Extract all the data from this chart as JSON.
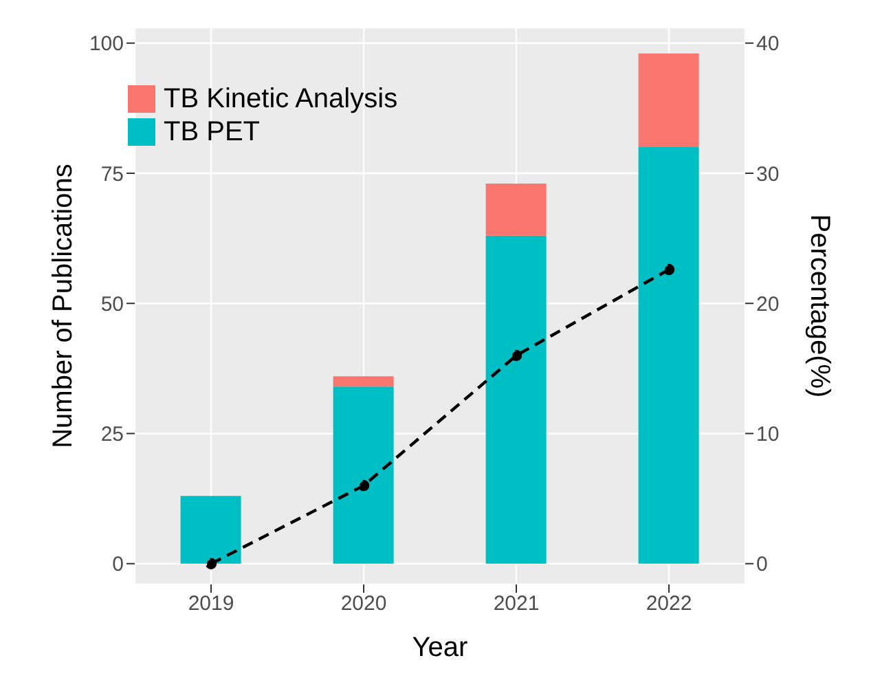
{
  "chart_data": {
    "type": "bar",
    "xlabel": "Year",
    "ylabel": "Number of Publications",
    "y2label": "Percentage(%)",
    "categories": [
      "2019",
      "2020",
      "2021",
      "2022"
    ],
    "stacked": true,
    "series": [
      {
        "name": "TB PET",
        "color": "#00bfc4",
        "values": [
          13,
          34,
          63,
          80
        ]
      },
      {
        "name": "TB Kinetic Analysis",
        "color": "#f8766d",
        "values": [
          0,
          2,
          10,
          18
        ]
      },
      {
        "type": "line",
        "axis": "y2",
        "color": "#000000",
        "line_style": "dashed",
        "marker": "circle",
        "values": [
          0,
          6,
          16,
          22.6
        ]
      }
    ],
    "ylim": [
      -4,
      103
    ],
    "yticks": [
      0,
      25,
      50,
      75,
      100
    ],
    "y2lim": [
      -1.6,
      41.2
    ],
    "y2ticks": [
      0,
      10,
      20,
      30,
      40
    ],
    "grid": true,
    "legend": "top left"
  }
}
